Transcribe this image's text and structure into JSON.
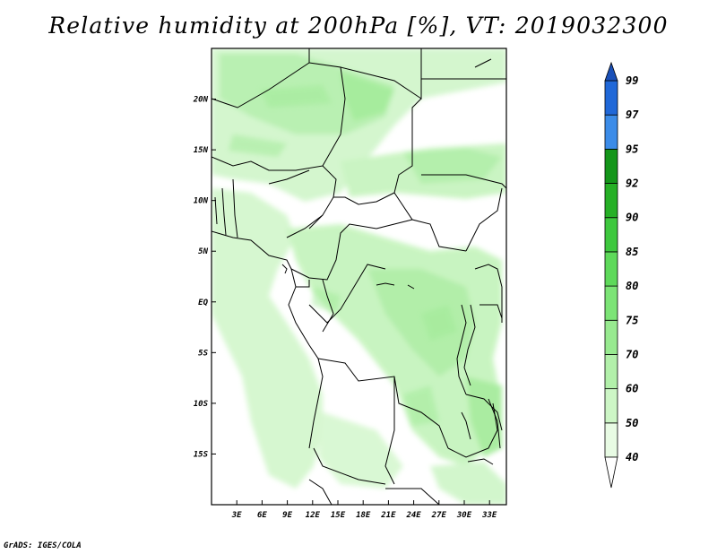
{
  "title": "Relative humidity at 200hPa [%], VT: 2019032300",
  "credit": "GrADS: IGES/COLA",
  "map": {
    "lon_range": [
      0,
      35
    ],
    "lat_range": [
      -20,
      25
    ],
    "lon_ticks": [
      "3E",
      "6E",
      "9E",
      "12E",
      "15E",
      "18E",
      "21E",
      "24E",
      "27E",
      "30E",
      "33E"
    ],
    "lat_ticks": [
      "20N",
      "15N",
      "10N",
      "5N",
      "EQ",
      "5S",
      "10S",
      "15S"
    ]
  },
  "colorbar": {
    "levels": [
      "40",
      "50",
      "60",
      "70",
      "75",
      "80",
      "85",
      "90",
      "92",
      "95",
      "97",
      "99"
    ],
    "colors": [
      "#ffffff",
      "#e8fbe4",
      "#cdf6c6",
      "#b2f0aa",
      "#98ea90",
      "#7ce476",
      "#5ed95a",
      "#3ec83e",
      "#26b026",
      "#14961a",
      "#3c8ce8",
      "#2068d8",
      "#1a50b8"
    ]
  }
}
